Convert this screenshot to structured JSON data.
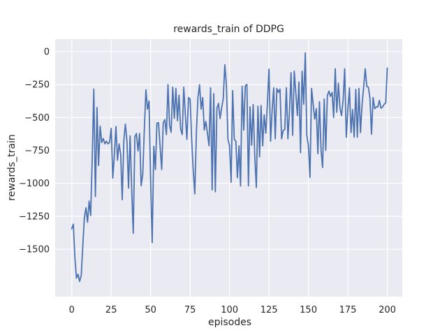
{
  "chart_data": {
    "type": "line",
    "title": "rewards_train of DDPG",
    "xlabel": "episodes",
    "ylabel": "rewards_train",
    "x_ticks": {
      "values": [
        0,
        25,
        50,
        75,
        100,
        125,
        150,
        175,
        200
      ],
      "labels": [
        "0",
        "25",
        "50",
        "75",
        "100",
        "125",
        "150",
        "175",
        "200"
      ]
    },
    "y_ticks": {
      "values": [
        0,
        -250,
        -500,
        -750,
        -1000,
        -1250,
        -1500
      ],
      "labels": [
        "0",
        "−250",
        "−500",
        "−750",
        "−1000",
        "−1250",
        "−1500"
      ]
    },
    "xlim": [
      -10.5,
      209.5
    ],
    "ylim": [
      -1860,
      95
    ],
    "grid": true,
    "legend": false,
    "colors": {
      "line": "#4c72b0",
      "plot_background": "#eaeaf2",
      "grid": "#ffffff",
      "text": "#262626",
      "figure_background": "#ffffff"
    },
    "series": [
      {
        "name": "rewards_train",
        "x_start": 0,
        "x_step": 1,
        "values": [
          -1345,
          -1310,
          -1560,
          -1720,
          -1690,
          -1745,
          -1700,
          -1480,
          -1260,
          -1185,
          -1295,
          -1135,
          -1245,
          -800,
          -285,
          -1100,
          -424,
          -865,
          -566,
          -690,
          -660,
          -700,
          -680,
          -700,
          -690,
          -583,
          -960,
          -789,
          -569,
          -824,
          -701,
          -780,
          -1124,
          -675,
          -551,
          -680,
          -1036,
          -640,
          -1054,
          -1380,
          -649,
          -622,
          -754,
          -622,
          -1018,
          -930,
          -600,
          -290,
          -437,
          -375,
          -985,
          -1450,
          -719,
          -895,
          -543,
          -540,
          -719,
          -895,
          -543,
          -516,
          -630,
          -250,
          -560,
          -613,
          -270,
          -507,
          -280,
          -525,
          -331,
          -587,
          -630,
          -270,
          -481,
          -666,
          -349,
          -360,
          -666,
          -904,
          -1080,
          -613,
          -349,
          -252,
          -437,
          -349,
          -596,
          -530,
          -620,
          -715,
          -275,
          -1050,
          -320,
          -1064,
          -430,
          -393,
          -508,
          -428,
          -360,
          -100,
          -250,
          -666,
          -711,
          -992,
          -296,
          -666,
          -680,
          -957,
          -715,
          -1020,
          -264,
          -596,
          -259,
          -250,
          -1019,
          -419,
          -711,
          -402,
          -800,
          -1032,
          -415,
          -800,
          -409,
          -715,
          -480,
          -620,
          -400,
          -134,
          -680,
          -450,
          -275,
          -662,
          -280,
          -310,
          -285,
          -662,
          -600,
          -590,
          -275,
          -662,
          -450,
          -160,
          -635,
          -148,
          -310,
          -486,
          -231,
          -768,
          -150,
          -400,
          -10,
          -635,
          -715,
          -955,
          -280,
          -400,
          -512,
          -433,
          -775,
          -380,
          -750,
          -880,
          -360,
          -750,
          -335,
          -300,
          -340,
          -310,
          -500,
          -130,
          -460,
          -240,
          -430,
          -486,
          -365,
          -130,
          -650,
          -433,
          -275,
          -615,
          -440,
          -650,
          -287,
          -650,
          -280,
          -615,
          -400,
          -270,
          -130,
          -265,
          -270,
          -355,
          -627,
          -348,
          -433,
          -420,
          -420,
          -370,
          -430,
          -420,
          -400,
          -390,
          -125
        ]
      }
    ]
  }
}
